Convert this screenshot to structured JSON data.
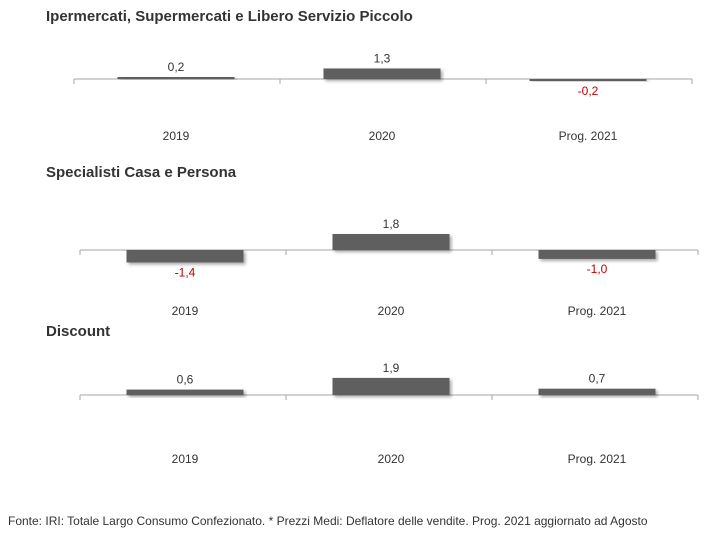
{
  "chart_data": [
    {
      "type": "bar",
      "title": "Ipermercati,  Supermercati e Libero Servizio Piccolo",
      "categories": [
        "2019",
        "2020",
        "Prog. 2021"
      ],
      "values": [
        0.2,
        1.3,
        -0.2
      ],
      "value_labels": [
        "0,2",
        "1,3",
        "-0,2"
      ],
      "ylim": [
        -2,
        2
      ],
      "grid": false,
      "bar_color": "#5f5f5f",
      "negative_label_color": "#c00000",
      "positive_label_color": "#333333"
    },
    {
      "type": "bar",
      "title": "Specialisti  Casa e Persona",
      "categories": [
        "2019",
        "2020",
        "Prog. 2021"
      ],
      "values": [
        -1.4,
        1.8,
        -1.0
      ],
      "value_labels": [
        "-1,4",
        "1,8",
        "-1,0"
      ],
      "ylim": [
        -2,
        2
      ],
      "grid": false,
      "bar_color": "#5f5f5f",
      "negative_label_color": "#c00000",
      "positive_label_color": "#333333"
    },
    {
      "type": "bar",
      "title": "Discount",
      "categories": [
        "2019",
        "2020",
        "Prog. 2021"
      ],
      "values": [
        0.6,
        1.9,
        0.7
      ],
      "value_labels": [
        "0,6",
        "1,9",
        "0,7"
      ],
      "ylim": [
        -2,
        2
      ],
      "grid": false,
      "bar_color": "#5f5f5f",
      "negative_label_color": "#c00000",
      "positive_label_color": "#333333"
    }
  ],
  "footer": {
    "text": "Fonte: IRI: Totale Largo Consumo Confezionato.  * Prezzi  Medi: Deflatore delle vendite.  Prog. 2021 aggiornato ad Agosto"
  }
}
